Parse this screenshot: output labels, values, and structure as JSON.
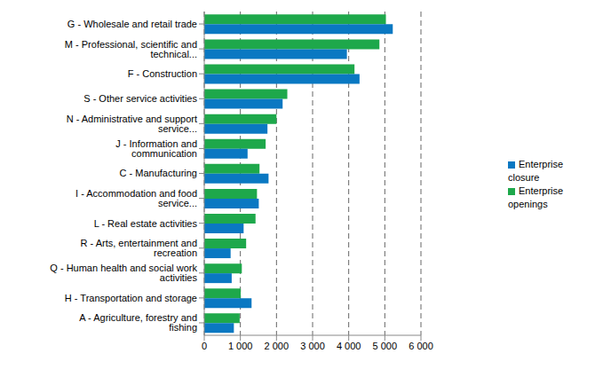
{
  "chart_data": {
    "type": "bar",
    "orientation": "horizontal",
    "grid": true,
    "legend": "right",
    "categories": [
      "G - Wholesale and retail trade",
      "M - Professional, scientific and technical...",
      "F - Construction",
      "S - Other service activities",
      "N - Administrative and support service...",
      "J - Information and communication",
      "C - Manufacturing",
      "I - Accommodation and food service...",
      "L - Real estate activities",
      "R - Arts, entertainment and recreation",
      "Q - Human health and social work activities",
      "H - Transportation and storage",
      "A - Agriculture, forestry and fishing"
    ],
    "series": [
      {
        "name": "Enterprise openings",
        "color": "#1ea84b",
        "values": [
          5030,
          4850,
          4160,
          2300,
          2000,
          1700,
          1530,
          1460,
          1420,
          1160,
          1040,
          1010,
          980
        ]
      },
      {
        "name": "Enterprise closure",
        "color": "#0a78c2",
        "values": [
          5220,
          3950,
          4300,
          2170,
          1750,
          1200,
          1780,
          1510,
          1090,
          730,
          760,
          1310,
          820
        ]
      }
    ],
    "xlim": [
      0,
      6000
    ],
    "xticks": [
      0,
      {
        "value": 1000,
        "label": "1 000"
      },
      {
        "value": 2000,
        "label": "2 000"
      },
      {
        "value": 3000,
        "label": "3 000"
      },
      {
        "value": 4000,
        "label": "4 000"
      },
      {
        "value": 5000,
        "label": "5 000"
      },
      {
        "value": 6000,
        "label": "6 000"
      }
    ]
  }
}
